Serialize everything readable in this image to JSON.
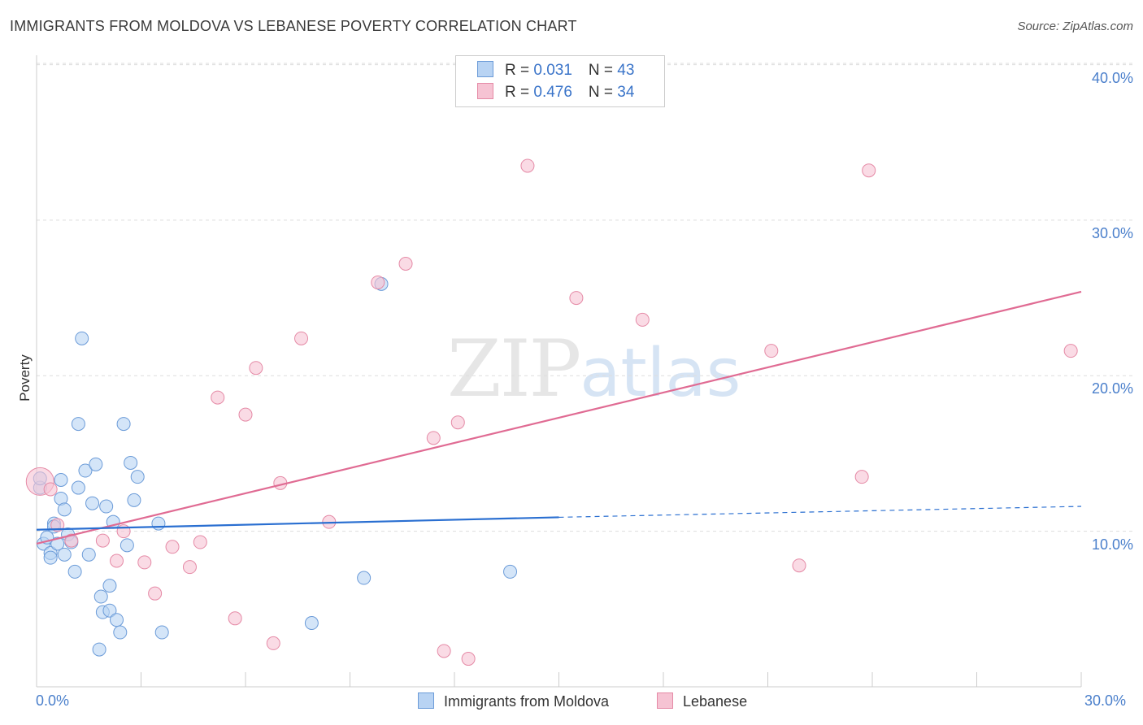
{
  "title": "IMMIGRANTS FROM MOLDOVA VS LEBANESE POVERTY CORRELATION CHART",
  "source": "Source: ZipAtlas.com",
  "watermark": {
    "zip": "ZIP",
    "atlas": "atlas"
  },
  "legend": {
    "rows": [
      {
        "r_label": "R = ",
        "r_value": "0.031",
        "n_label": "N = ",
        "n_value": "43"
      },
      {
        "r_label": "R = ",
        "r_value": "0.476",
        "n_label": "N = ",
        "n_value": "34"
      }
    ]
  },
  "bottom_legend": [
    "Immigrants from Moldova",
    "Lebanese"
  ],
  "colors": {
    "blue_fill": "#b8d3f3",
    "blue_stroke": "#6b9bd8",
    "blue_line": "#2a6fd1",
    "pink_fill": "#f6c3d3",
    "pink_stroke": "#e58aa6",
    "pink_line": "#e06b93",
    "grid": "#dddddd",
    "tick_text": "#4a7fcb"
  },
  "chart_data": {
    "type": "scatter",
    "title": "IMMIGRANTS FROM MOLDOVA VS LEBANESE POVERTY CORRELATION CHART",
    "xlabel": "",
    "ylabel": "Poverty",
    "xlim": [
      0,
      30
    ],
    "ylim": [
      0,
      40.5
    ],
    "x_tick_labels": [
      "0.0%",
      "30.0%"
    ],
    "y_ticks": [
      10,
      20,
      30,
      40
    ],
    "y_tick_labels": [
      "10.0%",
      "20.0%",
      "30.0%",
      "40.0%"
    ],
    "grid": true,
    "series": [
      {
        "name": "Immigrants from Moldova",
        "color": "#6b9bd8",
        "points": [
          [
            0.1,
            12.8,
            1
          ],
          [
            0.2,
            9.2,
            1
          ],
          [
            0.3,
            9.6,
            1
          ],
          [
            0.4,
            8.6,
            1
          ],
          [
            0.4,
            8.3,
            1
          ],
          [
            0.5,
            10.5,
            1
          ],
          [
            0.5,
            10.3,
            1
          ],
          [
            0.6,
            9.2,
            1
          ],
          [
            0.7,
            12.1,
            1
          ],
          [
            0.7,
            13.3,
            1
          ],
          [
            0.8,
            11.4,
            1
          ],
          [
            0.8,
            8.5,
            1
          ],
          [
            0.9,
            9.8,
            1
          ],
          [
            1.0,
            9.3,
            1
          ],
          [
            1.1,
            7.4,
            1
          ],
          [
            1.2,
            16.9,
            1
          ],
          [
            1.2,
            12.8,
            1
          ],
          [
            1.3,
            22.4,
            1
          ],
          [
            1.4,
            13.9,
            1
          ],
          [
            1.5,
            8.5,
            1
          ],
          [
            1.6,
            11.8,
            1
          ],
          [
            1.7,
            14.3,
            1
          ],
          [
            1.8,
            2.4,
            1
          ],
          [
            1.85,
            5.8,
            1
          ],
          [
            1.9,
            4.8,
            1
          ],
          [
            2.0,
            11.6,
            1
          ],
          [
            2.1,
            4.9,
            1
          ],
          [
            2.2,
            10.6,
            1
          ],
          [
            2.1,
            6.5,
            1
          ],
          [
            2.3,
            4.3,
            1
          ],
          [
            2.4,
            3.5,
            1
          ],
          [
            2.6,
            9.1,
            1
          ],
          [
            2.5,
            16.9,
            1
          ],
          [
            2.7,
            14.4,
            1
          ],
          [
            2.8,
            12.0,
            1
          ],
          [
            2.9,
            13.5,
            1
          ],
          [
            3.5,
            10.5,
            1
          ],
          [
            3.6,
            3.5,
            1
          ],
          [
            7.9,
            4.1,
            1
          ],
          [
            9.4,
            7.0,
            1
          ],
          [
            9.9,
            25.9,
            1
          ],
          [
            13.6,
            7.4,
            1
          ],
          [
            0.1,
            13.4,
            1
          ]
        ]
      },
      {
        "name": "Lebanese",
        "color": "#e58aa6",
        "points": [
          [
            0.1,
            13.2,
            3
          ],
          [
            0.6,
            10.4,
            1
          ],
          [
            1.0,
            9.4,
            1
          ],
          [
            1.9,
            9.4,
            1
          ],
          [
            2.3,
            8.1,
            1
          ],
          [
            2.5,
            10.0,
            1
          ],
          [
            3.1,
            8.0,
            1
          ],
          [
            3.4,
            6.0,
            1
          ],
          [
            3.9,
            9.0,
            1
          ],
          [
            4.4,
            7.7,
            1
          ],
          [
            4.7,
            9.3,
            1
          ],
          [
            5.2,
            18.6,
            1
          ],
          [
            5.7,
            4.4,
            1
          ],
          [
            6.0,
            17.5,
            1
          ],
          [
            6.3,
            20.5,
            1
          ],
          [
            6.8,
            2.8,
            1
          ],
          [
            7.0,
            13.1,
            1
          ],
          [
            7.6,
            22.4,
            1
          ],
          [
            8.4,
            10.6,
            1
          ],
          [
            9.8,
            26.0,
            1
          ],
          [
            10.6,
            27.2,
            1
          ],
          [
            11.4,
            16.0,
            1
          ],
          [
            11.7,
            2.3,
            1
          ],
          [
            12.1,
            17.0,
            1
          ],
          [
            12.4,
            1.8,
            1
          ],
          [
            14.1,
            33.5,
            1
          ],
          [
            15.5,
            25.0,
            1
          ],
          [
            17.4,
            23.6,
            1
          ],
          [
            21.1,
            21.6,
            1
          ],
          [
            21.9,
            7.8,
            1
          ],
          [
            23.7,
            13.5,
            1
          ],
          [
            23.9,
            33.2,
            1
          ],
          [
            29.7,
            21.6,
            1
          ],
          [
            0.4,
            12.7,
            1
          ]
        ]
      }
    ],
    "trendlines": [
      {
        "series": "Immigrants from Moldova",
        "solid": [
          [
            0,
            10.1
          ],
          [
            15,
            10.9
          ]
        ],
        "dashed": [
          [
            15,
            10.9
          ],
          [
            30,
            11.6
          ]
        ]
      },
      {
        "series": "Lebanese",
        "solid": [
          [
            0,
            9.2
          ],
          [
            30,
            25.4
          ]
        ]
      }
    ]
  }
}
